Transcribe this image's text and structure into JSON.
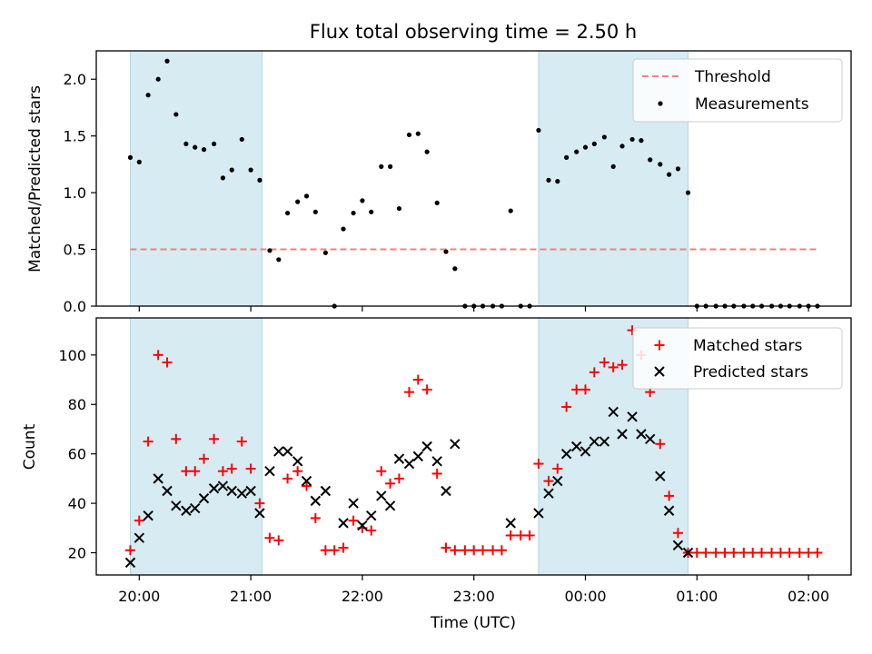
{
  "figure": {
    "title": "Flux total observing time = 2.50 h",
    "xlabel": "Time (UTC)",
    "xticks": [
      "20:00",
      "21:00",
      "22:00",
      "23:00",
      "00:00",
      "01:00",
      "02:00"
    ]
  },
  "colors": {
    "shade": "#add8e6",
    "threshold": "#f08080",
    "matched": "#ff0000",
    "predicted": "#000000",
    "measurement": "#000000"
  },
  "chart_data": [
    {
      "type": "scatter",
      "ylabel": "Matched/Predicted stars",
      "ylim": [
        0,
        2.25
      ],
      "yticks": [
        "0.0",
        "0.5",
        "1.0",
        "1.5",
        "2.0"
      ],
      "x_axis": "time (hours since 19:00 UTC, 01:00 = 6)",
      "shaded_intervals": [
        [
          0.92,
          2.1
        ],
        [
          4.58,
          5.92
        ]
      ],
      "threshold": {
        "label": "Threshold",
        "value": 0.5,
        "x_range": [
          0.92,
          7.08
        ]
      },
      "legend_position": "top-right",
      "series": [
        {
          "name": "Measurements",
          "points": [
            [
              0.92,
              1.31
            ],
            [
              1.0,
              1.27
            ],
            [
              1.08,
              1.86
            ],
            [
              1.17,
              2.0
            ],
            [
              1.25,
              2.16
            ],
            [
              1.33,
              1.69
            ],
            [
              1.42,
              1.43
            ],
            [
              1.5,
              1.4
            ],
            [
              1.58,
              1.38
            ],
            [
              1.67,
              1.43
            ],
            [
              1.75,
              1.13
            ],
            [
              1.83,
              1.2
            ],
            [
              1.92,
              1.47
            ],
            [
              2.0,
              1.2
            ],
            [
              2.08,
              1.11
            ],
            [
              2.17,
              0.49
            ],
            [
              2.25,
              0.41
            ],
            [
              2.33,
              0.82
            ],
            [
              2.42,
              0.92
            ],
            [
              2.5,
              0.97
            ],
            [
              2.58,
              0.83
            ],
            [
              2.67,
              0.47
            ],
            [
              2.75,
              0.0
            ],
            [
              2.83,
              0.68
            ],
            [
              2.92,
              0.82
            ],
            [
              3.0,
              0.93
            ],
            [
              3.08,
              0.83
            ],
            [
              3.17,
              1.23
            ],
            [
              3.25,
              1.23
            ],
            [
              3.33,
              0.86
            ],
            [
              3.42,
              1.51
            ],
            [
              3.5,
              1.52
            ],
            [
              3.58,
              1.36
            ],
            [
              3.67,
              0.91
            ],
            [
              3.75,
              0.48
            ],
            [
              3.83,
              0.33
            ],
            [
              3.92,
              0.0
            ],
            [
              4.0,
              0.0
            ],
            [
              4.08,
              0.0
            ],
            [
              4.17,
              0.0
            ],
            [
              4.25,
              0.0
            ],
            [
              4.33,
              0.84
            ],
            [
              4.42,
              0.0
            ],
            [
              4.5,
              0.0
            ],
            [
              4.58,
              1.55
            ],
            [
              4.67,
              1.11
            ],
            [
              4.75,
              1.1
            ],
            [
              4.83,
              1.31
            ],
            [
              4.92,
              1.36
            ],
            [
              5.0,
              1.4
            ],
            [
              5.08,
              1.43
            ],
            [
              5.17,
              1.49
            ],
            [
              5.25,
              1.23
            ],
            [
              5.33,
              1.41
            ],
            [
              5.42,
              1.47
            ],
            [
              5.5,
              1.46
            ],
            [
              5.58,
              1.29
            ],
            [
              5.67,
              1.25
            ],
            [
              5.75,
              1.16
            ],
            [
              5.83,
              1.21
            ],
            [
              5.92,
              1.0
            ],
            [
              6.0,
              0.0
            ],
            [
              6.08,
              0.0
            ],
            [
              6.17,
              0.0
            ],
            [
              6.25,
              0.0
            ],
            [
              6.33,
              0.0
            ],
            [
              6.42,
              0.0
            ],
            [
              6.5,
              0.0
            ],
            [
              6.58,
              0.0
            ],
            [
              6.67,
              0.0
            ],
            [
              6.75,
              0.0
            ],
            [
              6.83,
              0.0
            ],
            [
              6.92,
              0.0
            ],
            [
              7.0,
              0.0
            ],
            [
              7.08,
              0.0
            ]
          ]
        }
      ]
    },
    {
      "type": "scatter",
      "ylabel": "Count",
      "ylim": [
        11,
        115
      ],
      "yticks": [
        "20",
        "40",
        "60",
        "80",
        "100"
      ],
      "x_axis": "time (hours since 19:00 UTC, 01:00 = 6)",
      "shaded_intervals": [
        [
          0.92,
          2.1
        ],
        [
          4.58,
          5.92
        ]
      ],
      "legend_position": "top-right",
      "series": [
        {
          "name": "Matched stars",
          "marker": "+",
          "points": [
            [
              0.92,
              21
            ],
            [
              1.0,
              33
            ],
            [
              1.08,
              65
            ],
            [
              1.17,
              100
            ],
            [
              1.25,
              97
            ],
            [
              1.33,
              66
            ],
            [
              1.42,
              53
            ],
            [
              1.5,
              53
            ],
            [
              1.58,
              58
            ],
            [
              1.67,
              66
            ],
            [
              1.75,
              53
            ],
            [
              1.83,
              54
            ],
            [
              1.92,
              65
            ],
            [
              2.0,
              54
            ],
            [
              2.08,
              40
            ],
            [
              2.17,
              26
            ],
            [
              2.25,
              25
            ],
            [
              2.33,
              50
            ],
            [
              2.42,
              53
            ],
            [
              2.5,
              47
            ],
            [
              2.58,
              34
            ],
            [
              2.67,
              21
            ],
            [
              2.75,
              21
            ],
            [
              2.83,
              22
            ],
            [
              2.92,
              33
            ],
            [
              3.0,
              30
            ],
            [
              3.08,
              29
            ],
            [
              3.17,
              53
            ],
            [
              3.25,
              48
            ],
            [
              3.33,
              50
            ],
            [
              3.42,
              85
            ],
            [
              3.5,
              90
            ],
            [
              3.58,
              86
            ],
            [
              3.67,
              52
            ],
            [
              3.75,
              22
            ],
            [
              3.83,
              21
            ],
            [
              3.92,
              21
            ],
            [
              4.0,
              21
            ],
            [
              4.08,
              21
            ],
            [
              4.17,
              21
            ],
            [
              4.25,
              21
            ],
            [
              4.33,
              27
            ],
            [
              4.42,
              27
            ],
            [
              4.5,
              27
            ],
            [
              4.58,
              56
            ],
            [
              4.67,
              49
            ],
            [
              4.75,
              54
            ],
            [
              4.83,
              79
            ],
            [
              4.92,
              86
            ],
            [
              5.0,
              86
            ],
            [
              5.08,
              93
            ],
            [
              5.17,
              97
            ],
            [
              5.25,
              95
            ],
            [
              5.33,
              96
            ],
            [
              5.42,
              110
            ],
            [
              5.5,
              100
            ],
            [
              5.58,
              85
            ],
            [
              5.67,
              64
            ],
            [
              5.75,
              43
            ],
            [
              5.83,
              28
            ],
            [
              5.92,
              20
            ],
            [
              6.0,
              20
            ],
            [
              6.08,
              20
            ],
            [
              6.17,
              20
            ],
            [
              6.25,
              20
            ],
            [
              6.33,
              20
            ],
            [
              6.42,
              20
            ],
            [
              6.5,
              20
            ],
            [
              6.58,
              20
            ],
            [
              6.67,
              20
            ],
            [
              6.75,
              20
            ],
            [
              6.83,
              20
            ],
            [
              6.92,
              20
            ],
            [
              7.0,
              20
            ],
            [
              7.08,
              20
            ]
          ]
        },
        {
          "name": "Predicted stars",
          "marker": "x",
          "points": [
            [
              0.92,
              16
            ],
            [
              1.0,
              26
            ],
            [
              1.08,
              35
            ],
            [
              1.17,
              50
            ],
            [
              1.25,
              45
            ],
            [
              1.33,
              39
            ],
            [
              1.42,
              37
            ],
            [
              1.5,
              38
            ],
            [
              1.58,
              42
            ],
            [
              1.67,
              46
            ],
            [
              1.75,
              47
            ],
            [
              1.83,
              45
            ],
            [
              1.92,
              44
            ],
            [
              2.0,
              45
            ],
            [
              2.08,
              36
            ],
            [
              2.17,
              53
            ],
            [
              2.25,
              61
            ],
            [
              2.33,
              61
            ],
            [
              2.42,
              57
            ],
            [
              2.5,
              49
            ],
            [
              2.58,
              41
            ],
            [
              2.67,
              45
            ],
            [
              2.83,
              32
            ],
            [
              2.92,
              40
            ],
            [
              3.0,
              31
            ],
            [
              3.08,
              35
            ],
            [
              3.17,
              43
            ],
            [
              3.25,
              39
            ],
            [
              3.33,
              58
            ],
            [
              3.42,
              56
            ],
            [
              3.5,
              59
            ],
            [
              3.58,
              63
            ],
            [
              3.67,
              57
            ],
            [
              3.75,
              45
            ],
            [
              3.83,
              64
            ],
            [
              4.33,
              32
            ],
            [
              4.58,
              36
            ],
            [
              4.67,
              44
            ],
            [
              4.75,
              49
            ],
            [
              4.83,
              60
            ],
            [
              4.92,
              63
            ],
            [
              5.0,
              61
            ],
            [
              5.08,
              65
            ],
            [
              5.17,
              65
            ],
            [
              5.25,
              77
            ],
            [
              5.33,
              68
            ],
            [
              5.42,
              75
            ],
            [
              5.5,
              68
            ],
            [
              5.58,
              66
            ],
            [
              5.67,
              51
            ],
            [
              5.75,
              37
            ],
            [
              5.83,
              23
            ],
            [
              5.92,
              20
            ]
          ]
        }
      ]
    }
  ]
}
